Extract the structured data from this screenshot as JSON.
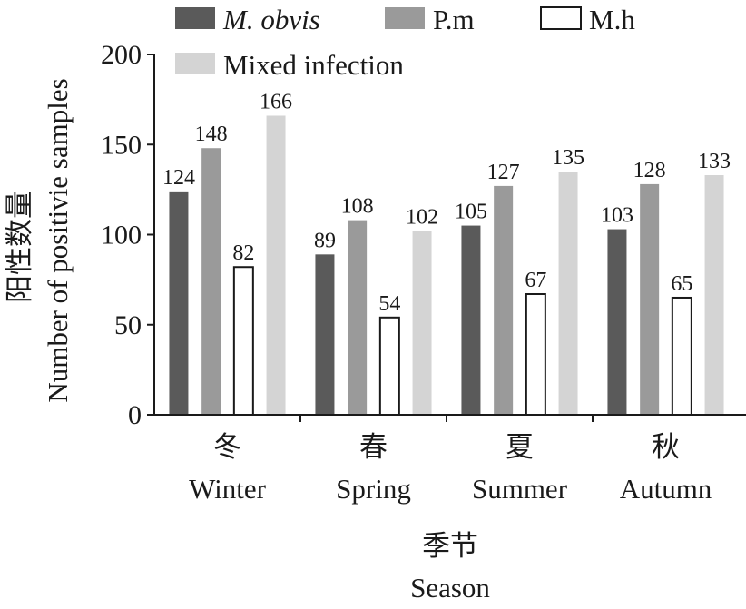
{
  "chart_data": {
    "type": "bar",
    "categories": [
      "冬",
      "春",
      "夏",
      "秋"
    ],
    "categories_en": [
      "Winter",
      "Spring",
      "Summer",
      "Autumn"
    ],
    "series": [
      {
        "name": "M. obvis",
        "color": "#5a5a5a",
        "values": [
          124,
          89,
          105,
          103
        ]
      },
      {
        "name": "P.m",
        "color": "#9a9a9a",
        "values": [
          148,
          108,
          127,
          128
        ]
      },
      {
        "name": "M.h",
        "color": "#ffffff",
        "values": [
          82,
          54,
          67,
          65
        ]
      },
      {
        "name": "Mixed infection",
        "color": "#d4d4d4",
        "values": [
          166,
          102,
          135,
          133
        ]
      }
    ],
    "xlabel_cn": "季节",
    "xlabel": "Season",
    "ylabel_cn": "阳性数量",
    "ylabel": "Number of positivie samples",
    "ylim": [
      0,
      200
    ],
    "yticks": [
      "0",
      "50",
      "100",
      "150",
      "200"
    ],
    "grid": false,
    "legend_position": "top"
  }
}
